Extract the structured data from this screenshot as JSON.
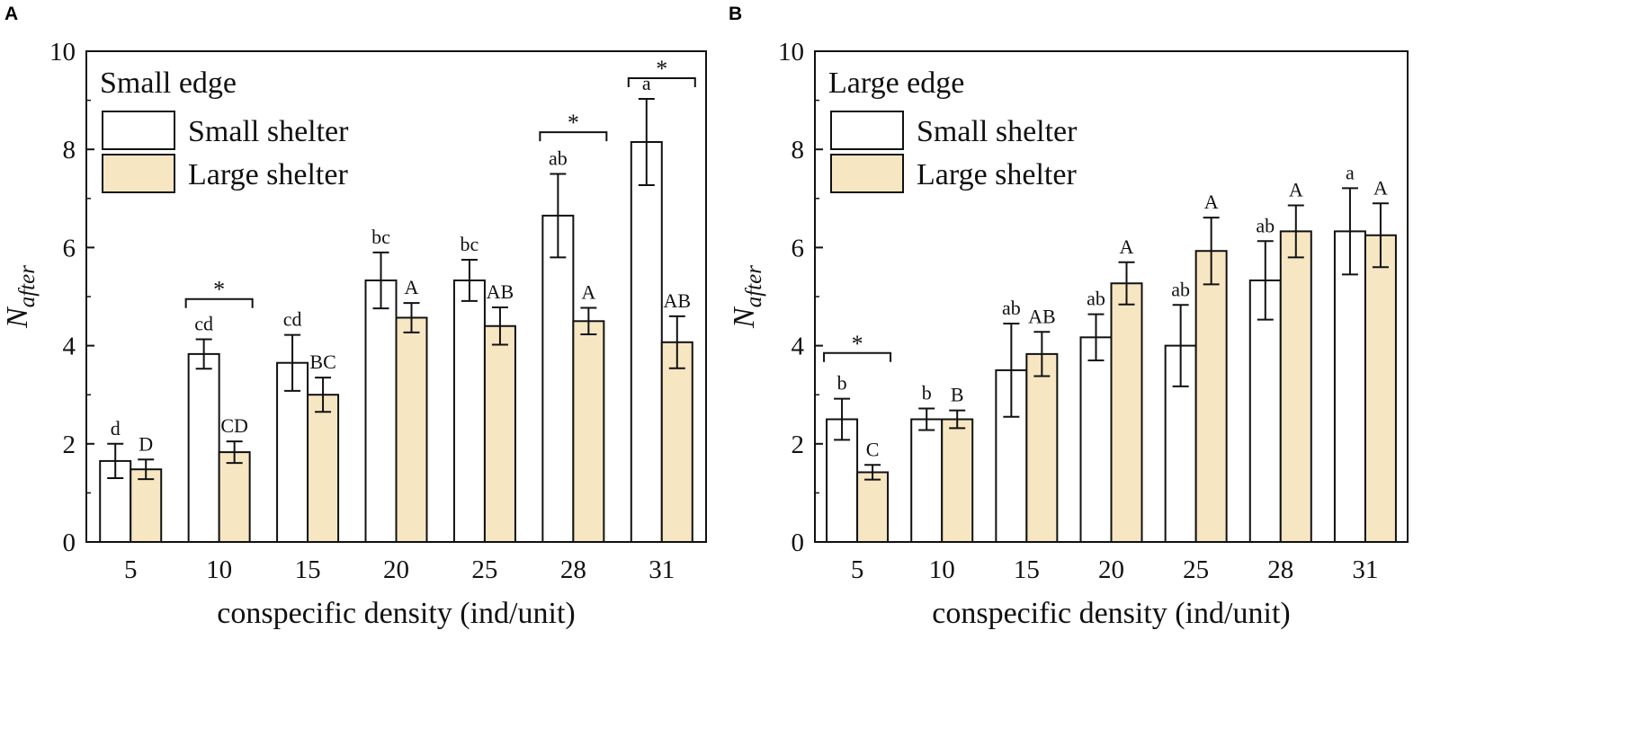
{
  "colors": {
    "small_shelter": "#ffffff",
    "large_shelter": "#f7e6c2",
    "stroke": "#111111"
  },
  "chart_data": [
    {
      "panel_label": "A",
      "type": "bar",
      "title": "Small edge",
      "xlabel": "conspecific density (ind/unit)",
      "ylabel_main": "N",
      "ylabel_sub": "after",
      "ylim": [
        0,
        10
      ],
      "yticks": [
        "0",
        "2",
        "4",
        "6",
        "8",
        "10"
      ],
      "categories": [
        "5",
        "10",
        "15",
        "20",
        "25",
        "28",
        "31"
      ],
      "legend": [
        "Small shelter",
        "Large shelter"
      ],
      "series": [
        {
          "name": "Small shelter",
          "values": [
            1.65,
            3.83,
            3.65,
            5.33,
            5.33,
            6.65,
            8.15
          ],
          "errors": [
            0.35,
            0.3,
            0.57,
            0.57,
            0.42,
            0.85,
            0.88
          ],
          "letters": [
            "d",
            "cd",
            "cd",
            "bc",
            "bc",
            "ab",
            "a"
          ]
        },
        {
          "name": "Large shelter",
          "values": [
            1.48,
            1.83,
            3.0,
            4.57,
            4.4,
            4.5,
            4.07
          ],
          "errors": [
            0.2,
            0.22,
            0.35,
            0.3,
            0.38,
            0.27,
            0.53
          ],
          "letters": [
            "D",
            "CD",
            "BC",
            "A",
            "AB",
            "A",
            "AB"
          ]
        }
      ],
      "significance": [
        {
          "category": "10",
          "label": "*",
          "bracket_y": 4.95
        },
        {
          "category": "28",
          "label": "*",
          "bracket_y": 8.35
        },
        {
          "category": "31",
          "label": "*",
          "bracket_y": 9.45
        }
      ]
    },
    {
      "panel_label": "B",
      "type": "bar",
      "title": "Large edge",
      "xlabel": "conspecific density (ind/unit)",
      "ylabel_main": "N",
      "ylabel_sub": "after",
      "ylim": [
        0,
        10
      ],
      "yticks": [
        "0",
        "2",
        "4",
        "6",
        "8",
        "10"
      ],
      "categories": [
        "5",
        "10",
        "15",
        "20",
        "25",
        "28",
        "31"
      ],
      "legend": [
        "Small shelter",
        "Large shelter"
      ],
      "series": [
        {
          "name": "Small shelter",
          "values": [
            2.5,
            2.5,
            3.5,
            4.17,
            4.0,
            5.33,
            6.33
          ],
          "errors": [
            0.42,
            0.22,
            0.95,
            0.47,
            0.83,
            0.8,
            0.88
          ],
          "letters": [
            "b",
            "b",
            "ab",
            "ab",
            "ab",
            "ab",
            "a"
          ]
        },
        {
          "name": "Large shelter",
          "values": [
            1.42,
            2.5,
            3.83,
            5.27,
            5.93,
            6.33,
            6.25
          ],
          "errors": [
            0.15,
            0.18,
            0.45,
            0.43,
            0.68,
            0.53,
            0.65
          ],
          "letters": [
            "C",
            "B",
            "AB",
            "A",
            "A",
            "A",
            "A"
          ]
        }
      ],
      "significance": [
        {
          "category": "5",
          "label": "*",
          "bracket_y": 3.85
        }
      ]
    }
  ]
}
